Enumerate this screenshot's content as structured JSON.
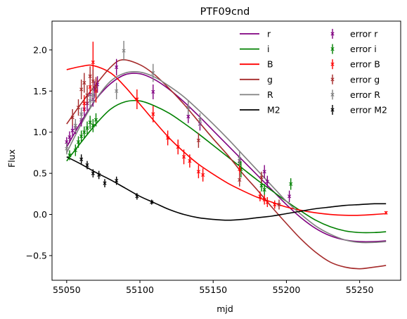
{
  "chart_data": {
    "type": "line",
    "title": "PTF09cnd",
    "xlabel": "mjd",
    "ylabel": "Flux",
    "xlim": [
      55040,
      55278
    ],
    "ylim": [
      -0.8,
      2.35
    ],
    "x_ticks": [
      55050,
      55100,
      55150,
      55200,
      55250
    ],
    "y_ticks": [
      -0.5,
      0.0,
      0.5,
      1.0,
      1.5,
      2.0
    ],
    "x_tick_labels": [
      "55050",
      "55100",
      "55150",
      "55200",
      "55250"
    ],
    "y_tick_labels": [
      "−0.5",
      "0.0",
      "0.5",
      "1.0",
      "1.5",
      "2.0"
    ],
    "legend_placement": "top-right",
    "grid": false,
    "series": [
      {
        "name": "r",
        "color": "#800080",
        "x": [
          55050,
          55060,
          55070,
          55080,
          55090,
          55100,
          55110,
          55120,
          55130,
          55140,
          55150,
          55160,
          55170,
          55180,
          55190,
          55200,
          55210,
          55220,
          55230,
          55240,
          55250,
          55260,
          55268
        ],
        "y": [
          0.82,
          1.13,
          1.4,
          1.59,
          1.7,
          1.71,
          1.64,
          1.52,
          1.37,
          1.2,
          1.02,
          0.84,
          0.66,
          0.48,
          0.3,
          0.12,
          -0.04,
          -0.17,
          -0.26,
          -0.31,
          -0.33,
          -0.33,
          -0.32
        ]
      },
      {
        "name": "i",
        "color": "#008000",
        "x": [
          55050,
          55060,
          55070,
          55080,
          55090,
          55100,
          55110,
          55120,
          55130,
          55140,
          55150,
          55160,
          55170,
          55180,
          55190,
          55200,
          55210,
          55220,
          55230,
          55240,
          55250,
          55260,
          55268
        ],
        "y": [
          0.65,
          0.88,
          1.1,
          1.28,
          1.37,
          1.38,
          1.32,
          1.23,
          1.11,
          0.98,
          0.84,
          0.7,
          0.56,
          0.42,
          0.29,
          0.16,
          0.04,
          -0.07,
          -0.15,
          -0.2,
          -0.22,
          -0.22,
          -0.21
        ]
      },
      {
        "name": "B",
        "color": "#ff0000",
        "x": [
          55050,
          55060,
          55068,
          55080,
          55090,
          55100,
          55110,
          55120,
          55130,
          55140,
          55150,
          55160,
          55170,
          55180,
          55190,
          55200,
          55210,
          55220,
          55230,
          55240,
          55250,
          55260,
          55268
        ],
        "y": [
          1.76,
          1.8,
          1.81,
          1.72,
          1.55,
          1.34,
          1.13,
          0.93,
          0.76,
          0.61,
          0.49,
          0.38,
          0.29,
          0.21,
          0.15,
          0.09,
          0.05,
          0.02,
          0.0,
          -0.01,
          -0.01,
          0.0,
          0.01
        ]
      },
      {
        "name": "g",
        "color": "#a52a2a",
        "x": [
          55050,
          55060,
          55070,
          55080,
          55088,
          55100,
          55110,
          55120,
          55130,
          55140,
          55150,
          55160,
          55170,
          55180,
          55190,
          55200,
          55210,
          55220,
          55230,
          55240,
          55250,
          55260,
          55268
        ],
        "y": [
          1.1,
          1.35,
          1.58,
          1.79,
          1.88,
          1.82,
          1.7,
          1.53,
          1.34,
          1.13,
          0.92,
          0.72,
          0.5,
          0.3,
          0.09,
          -0.11,
          -0.3,
          -0.46,
          -0.58,
          -0.64,
          -0.66,
          -0.64,
          -0.62
        ]
      },
      {
        "name": "R",
        "color": "#808080",
        "x": [
          55050,
          55060,
          55070,
          55080,
          55090,
          55100,
          55110,
          55120,
          55130,
          55140,
          55150,
          55160,
          55170,
          55180,
          55190,
          55200,
          55210,
          55220,
          55230,
          55240,
          55250,
          55260,
          55268
        ],
        "y": [
          0.75,
          1.1,
          1.4,
          1.62,
          1.72,
          1.73,
          1.67,
          1.56,
          1.43,
          1.27,
          1.1,
          0.92,
          0.73,
          0.54,
          0.35,
          0.16,
          0.0,
          -0.14,
          -0.24,
          -0.31,
          -0.34,
          -0.34,
          -0.33
        ]
      },
      {
        "name": "M2",
        "color": "#000000",
        "x": [
          55050,
          55060,
          55070,
          55080,
          55090,
          55100,
          55110,
          55120,
          55130,
          55140,
          55150,
          55160,
          55170,
          55180,
          55190,
          55200,
          55210,
          55220,
          55230,
          55240,
          55250,
          55260,
          55268
        ],
        "y": [
          0.7,
          0.61,
          0.51,
          0.42,
          0.32,
          0.22,
          0.14,
          0.06,
          0.0,
          -0.04,
          -0.06,
          -0.07,
          -0.06,
          -0.04,
          -0.02,
          0.01,
          0.04,
          0.07,
          0.09,
          0.11,
          0.12,
          0.13,
          0.13
        ]
      }
    ],
    "error_series": [
      {
        "name": "error r",
        "color": "#800080",
        "points": [
          {
            "x": 55050,
            "y": 0.88,
            "err": 0.06
          },
          {
            "x": 55052,
            "y": 0.94,
            "err": 0.07
          },
          {
            "x": 55054,
            "y": 1.02,
            "err": 0.07
          },
          {
            "x": 55056,
            "y": 1.05,
            "err": 0.07
          },
          {
            "x": 55060,
            "y": 1.15,
            "err": 0.08
          },
          {
            "x": 55062,
            "y": 1.28,
            "err": 0.08
          },
          {
            "x": 55064,
            "y": 1.35,
            "err": 0.09
          },
          {
            "x": 55066,
            "y": 1.46,
            "err": 0.09
          },
          {
            "x": 55068,
            "y": 1.4,
            "err": 0.09
          },
          {
            "x": 55069,
            "y": 1.52,
            "err": 0.1
          },
          {
            "x": 55071,
            "y": 1.58,
            "err": 0.1
          },
          {
            "x": 55084,
            "y": 1.79,
            "err": 0.1
          },
          {
            "x": 55109,
            "y": 1.49,
            "err": 0.09
          },
          {
            "x": 55133,
            "y": 1.19,
            "err": 0.08
          },
          {
            "x": 55141,
            "y": 1.1,
            "err": 0.08
          },
          {
            "x": 55168,
            "y": 0.65,
            "err": 0.08
          },
          {
            "x": 55185,
            "y": 0.52,
            "err": 0.08
          },
          {
            "x": 55187,
            "y": 0.4,
            "err": 0.07
          },
          {
            "x": 55202,
            "y": 0.22,
            "err": 0.07
          }
        ]
      },
      {
        "name": "error i",
        "color": "#008000",
        "points": [
          {
            "x": 55052,
            "y": 0.72,
            "err": 0.06
          },
          {
            "x": 55056,
            "y": 0.78,
            "err": 0.07
          },
          {
            "x": 55058,
            "y": 0.88,
            "err": 0.07
          },
          {
            "x": 55060,
            "y": 0.95,
            "err": 0.07
          },
          {
            "x": 55062,
            "y": 1.0,
            "err": 0.07
          },
          {
            "x": 55064,
            "y": 1.05,
            "err": 0.08
          },
          {
            "x": 55066,
            "y": 1.12,
            "err": 0.08
          },
          {
            "x": 55068,
            "y": 1.08,
            "err": 0.08
          },
          {
            "x": 55070,
            "y": 1.15,
            "err": 0.08
          },
          {
            "x": 55168,
            "y": 0.62,
            "err": 0.1
          },
          {
            "x": 55169,
            "y": 0.55,
            "err": 0.1
          },
          {
            "x": 55183,
            "y": 0.35,
            "err": 0.07
          },
          {
            "x": 55185,
            "y": 0.3,
            "err": 0.07
          },
          {
            "x": 55203,
            "y": 0.37,
            "err": 0.07
          }
        ]
      },
      {
        "name": "error B",
        "color": "#ff0000",
        "points": [
          {
            "x": 55062,
            "y": 1.35,
            "err": 0.1
          },
          {
            "x": 55066,
            "y": 1.55,
            "err": 0.15
          },
          {
            "x": 55068,
            "y": 1.85,
            "err": 0.25
          },
          {
            "x": 55070,
            "y": 1.5,
            "err": 0.14
          },
          {
            "x": 55098,
            "y": 1.4,
            "err": 0.12
          },
          {
            "x": 55109,
            "y": 1.22,
            "err": 0.1
          },
          {
            "x": 55119,
            "y": 0.93,
            "err": 0.09
          },
          {
            "x": 55126,
            "y": 0.82,
            "err": 0.09
          },
          {
            "x": 55130,
            "y": 0.7,
            "err": 0.09
          },
          {
            "x": 55134,
            "y": 0.65,
            "err": 0.08
          },
          {
            "x": 55140,
            "y": 0.52,
            "err": 0.08
          },
          {
            "x": 55143,
            "y": 0.48,
            "err": 0.08
          },
          {
            "x": 55168,
            "y": 0.55,
            "err": 0.08
          },
          {
            "x": 55182,
            "y": 0.22,
            "err": 0.06
          },
          {
            "x": 55185,
            "y": 0.18,
            "err": 0.06
          },
          {
            "x": 55187,
            "y": 0.15,
            "err": 0.06
          },
          {
            "x": 55192,
            "y": 0.12,
            "err": 0.05
          },
          {
            "x": 55268,
            "y": 0.02,
            "err": 0.02
          }
        ]
      },
      {
        "name": "error g",
        "color": "#a52a2a",
        "points": [
          {
            "x": 55054,
            "y": 1.18,
            "err": 0.1
          },
          {
            "x": 55058,
            "y": 1.3,
            "err": 0.1
          },
          {
            "x": 55060,
            "y": 1.52,
            "err": 0.12
          },
          {
            "x": 55062,
            "y": 1.6,
            "err": 0.12
          },
          {
            "x": 55064,
            "y": 1.45,
            "err": 0.12
          },
          {
            "x": 55066,
            "y": 1.68,
            "err": 0.12
          },
          {
            "x": 55068,
            "y": 1.62,
            "err": 0.14
          },
          {
            "x": 55070,
            "y": 1.55,
            "err": 0.12
          },
          {
            "x": 55140,
            "y": 0.9,
            "err": 0.09
          },
          {
            "x": 55168,
            "y": 0.42,
            "err": 0.08
          },
          {
            "x": 55183,
            "y": 0.45,
            "err": 0.07
          },
          {
            "x": 55195,
            "y": 0.12,
            "err": 0.06
          }
        ]
      },
      {
        "name": "error R",
        "color": "#808080",
        "points": [
          {
            "x": 55050,
            "y": 0.8,
            "err": 0.07
          },
          {
            "x": 55056,
            "y": 1.08,
            "err": 0.08
          },
          {
            "x": 55060,
            "y": 1.22,
            "err": 0.08
          },
          {
            "x": 55066,
            "y": 1.38,
            "err": 0.09
          },
          {
            "x": 55068,
            "y": 1.45,
            "err": 0.09
          },
          {
            "x": 55084,
            "y": 1.5,
            "err": 0.1
          },
          {
            "x": 55089,
            "y": 1.99,
            "err": 0.12
          },
          {
            "x": 55109,
            "y": 1.72,
            "err": 0.11
          },
          {
            "x": 55133,
            "y": 1.3,
            "err": 0.09
          },
          {
            "x": 55141,
            "y": 1.15,
            "err": 0.08
          },
          {
            "x": 55168,
            "y": 0.68,
            "err": 0.08
          }
        ]
      },
      {
        "name": "error M2",
        "color": "#000000",
        "points": [
          {
            "x": 55060,
            "y": 0.67,
            "err": 0.06
          },
          {
            "x": 55064,
            "y": 0.6,
            "err": 0.05
          },
          {
            "x": 55068,
            "y": 0.5,
            "err": 0.05
          },
          {
            "x": 55072,
            "y": 0.48,
            "err": 0.05
          },
          {
            "x": 55076,
            "y": 0.38,
            "err": 0.05
          },
          {
            "x": 55084,
            "y": 0.41,
            "err": 0.05
          },
          {
            "x": 55098,
            "y": 0.22,
            "err": 0.04
          },
          {
            "x": 55108,
            "y": 0.15,
            "err": 0.03
          }
        ]
      }
    ]
  }
}
